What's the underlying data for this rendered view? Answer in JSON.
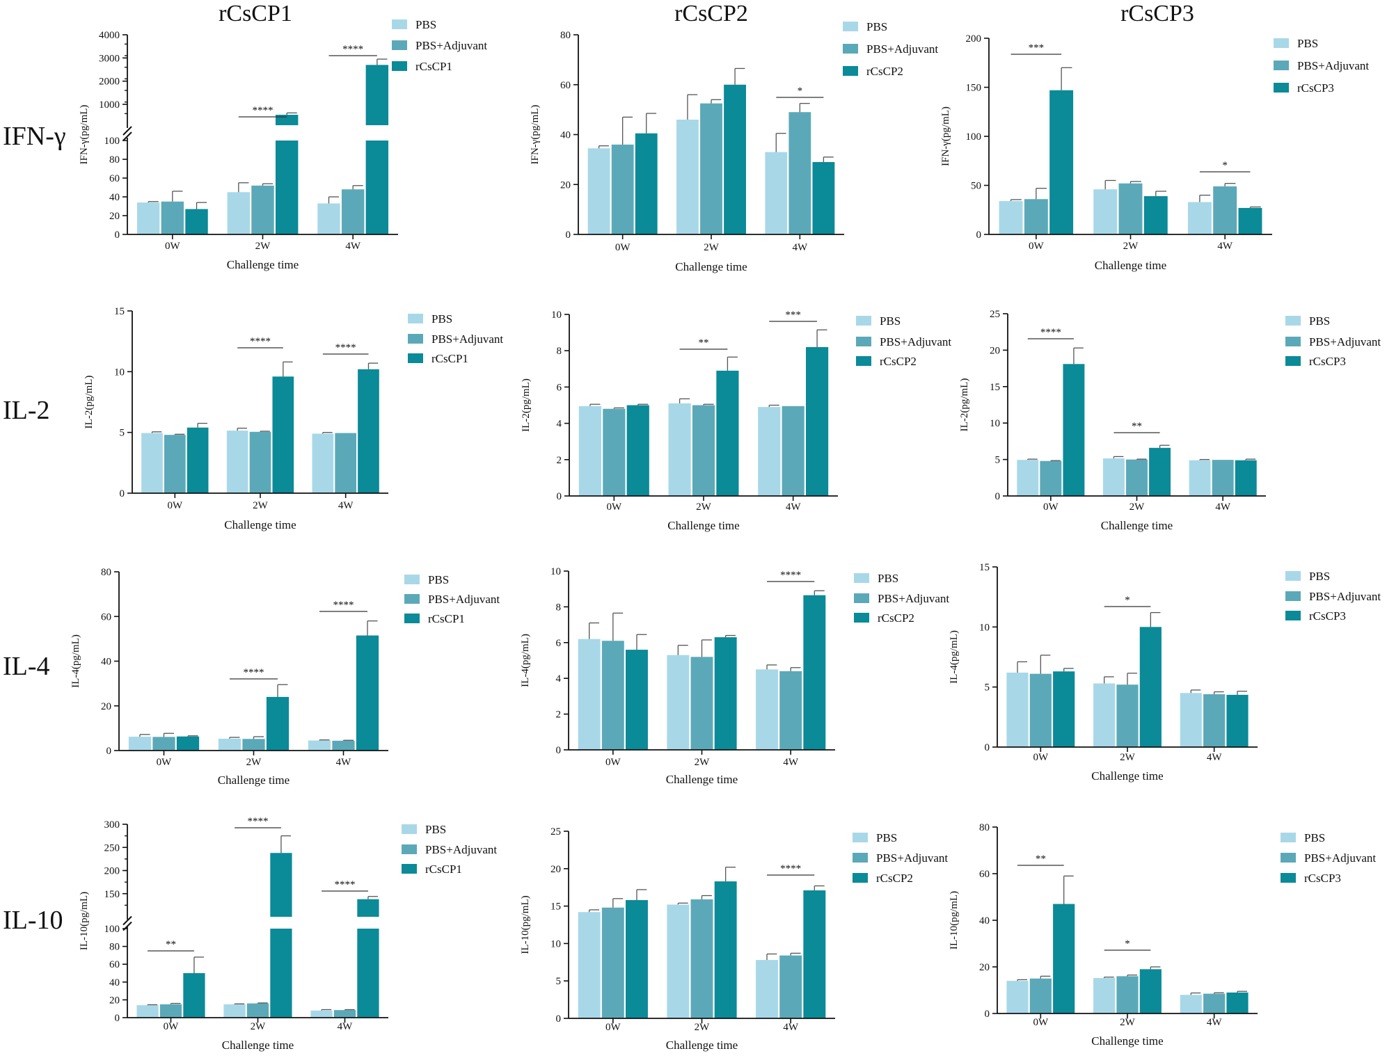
{
  "figure": {
    "column_titles": [
      "rCsCP1",
      "rCsCP2",
      "rCsCP3"
    ],
    "row_labels": [
      "IFN-γ",
      "IL-2",
      "IL-4",
      "IL-10"
    ]
  },
  "colors": {
    "PBS": "#a8d8e8",
    "PBS+Adjuvant": "#5ba9b8",
    "vaccine": "#0b8a98",
    "axis": "#111111"
  },
  "chart_data": [
    {
      "id": "ifng-1",
      "type": "bar",
      "title": "",
      "xlabel": "Challenge time",
      "ylabel": "IFN-γ(pg/mL)",
      "categories": [
        "0W",
        "2W",
        "4W"
      ],
      "series": [
        {
          "name": "PBS",
          "values": [
            34,
            45,
            33
          ],
          "errors": [
            1,
            10,
            7
          ]
        },
        {
          "name": "PBS+Adjuvant",
          "values": [
            35,
            52,
            48
          ],
          "errors": [
            11,
            2,
            4
          ]
        },
        {
          "name": "rCsCP1",
          "values": [
            27,
            550,
            2700
          ],
          "errors": [
            7,
            80,
            250
          ]
        }
      ],
      "broken_axis": {
        "lower": [
          0,
          100
        ],
        "upper": [
          100,
          4000
        ]
      },
      "lower_ticks": [
        "0",
        "20",
        "40",
        "60",
        "80",
        "100"
      ],
      "upper_ticks": [
        "1000",
        "2000",
        "3000",
        "4000"
      ],
      "significance": [
        {
          "group": 1,
          "label": "****"
        },
        {
          "group": 2,
          "label": "****"
        }
      ],
      "legend": [
        "PBS",
        "PBS+Adjuvant",
        "rCsCP1"
      ]
    },
    {
      "id": "ifng-2",
      "type": "bar",
      "title": "",
      "xlabel": "Challenge time",
      "ylabel": "IFN-γ(pg/mL)",
      "categories": [
        "0W",
        "2W",
        "4W"
      ],
      "series": [
        {
          "name": "PBS",
          "values": [
            34.5,
            46,
            33
          ],
          "errors": [
            1,
            10,
            7.5
          ]
        },
        {
          "name": "PBS+Adjuvant",
          "values": [
            36,
            52.5,
            49
          ],
          "errors": [
            11,
            1.5,
            3.5
          ]
        },
        {
          "name": "rCsCP2",
          "values": [
            40.5,
            60,
            29
          ],
          "errors": [
            8,
            6.5,
            2
          ]
        }
      ],
      "ylim": [
        0,
        80
      ],
      "yticks": [
        "0",
        "20",
        "40",
        "60",
        "80"
      ],
      "significance": [
        {
          "group": 2,
          "label": "*"
        }
      ],
      "legend": [
        "PBS",
        "PBS+Adjuvant",
        "rCsCP2"
      ]
    },
    {
      "id": "ifng-3",
      "type": "bar",
      "title": "",
      "xlabel": "Challenge time",
      "ylabel": "IFN-γ(pg/mL)",
      "categories": [
        "0W",
        "2W",
        "4W"
      ],
      "series": [
        {
          "name": "PBS",
          "values": [
            34,
            46,
            33
          ],
          "errors": [
            1.5,
            9,
            7
          ]
        },
        {
          "name": "PBS+Adjuvant",
          "values": [
            36,
            52,
            49
          ],
          "errors": [
            11,
            2,
            3
          ]
        },
        {
          "name": "rCsCP3",
          "values": [
            147,
            39,
            27
          ],
          "errors": [
            23,
            5,
            1
          ]
        }
      ],
      "ylim": [
        0,
        200
      ],
      "yticks": [
        "0",
        "50",
        "100",
        "150",
        "200"
      ],
      "significance": [
        {
          "group": 0,
          "label": "***"
        },
        {
          "group": 2,
          "label": "*"
        }
      ],
      "legend": [
        "PBS",
        "PBS+Adjuvant",
        "rCsCP3"
      ]
    },
    {
      "id": "il2-1",
      "type": "bar",
      "title": "",
      "xlabel": "Challenge time",
      "ylabel": "IL-2(pg/mL)",
      "categories": [
        "0W",
        "2W",
        "4W"
      ],
      "series": [
        {
          "name": "PBS",
          "values": [
            4.95,
            5.15,
            4.9
          ],
          "errors": [
            0.1,
            0.2,
            0.1
          ]
        },
        {
          "name": "PBS+Adjuvant",
          "values": [
            4.8,
            5.05,
            4.95
          ],
          "errors": [
            0.05,
            0.05,
            0
          ]
        },
        {
          "name": "rCsCP1",
          "values": [
            5.4,
            9.6,
            10.2
          ],
          "errors": [
            0.35,
            1.2,
            0.5
          ]
        }
      ],
      "ylim": [
        0,
        15
      ],
      "yticks": [
        "0",
        "5",
        "10",
        "15"
      ],
      "significance": [
        {
          "group": 1,
          "label": "****"
        },
        {
          "group": 2,
          "label": "****"
        }
      ],
      "legend": [
        "PBS",
        "PBS+Adjuvant",
        "rCsCP1"
      ]
    },
    {
      "id": "il2-2",
      "type": "bar",
      "title": "",
      "xlabel": "Challenge time",
      "ylabel": "IL-2(pg/mL)",
      "categories": [
        "0W",
        "2W",
        "4W"
      ],
      "series": [
        {
          "name": "PBS",
          "values": [
            4.95,
            5.1,
            4.9
          ],
          "errors": [
            0.1,
            0.25,
            0.1
          ]
        },
        {
          "name": "PBS+Adjuvant",
          "values": [
            4.8,
            5.0,
            4.95
          ],
          "errors": [
            0.05,
            0.05,
            0
          ]
        },
        {
          "name": "rCsCP2",
          "values": [
            5.0,
            6.9,
            8.2
          ],
          "errors": [
            0.05,
            0.75,
            0.95
          ]
        }
      ],
      "ylim": [
        0,
        10
      ],
      "yticks": [
        "0",
        "2",
        "4",
        "6",
        "8",
        "10"
      ],
      "significance": [
        {
          "group": 1,
          "label": "**"
        },
        {
          "group": 2,
          "label": "***"
        }
      ],
      "legend": [
        "PBS",
        "PBS+Adjuvant",
        "rCsCP2"
      ]
    },
    {
      "id": "il2-3",
      "type": "bar",
      "title": "",
      "xlabel": "Challenge time",
      "ylabel": "IL-2(pg/mL)",
      "categories": [
        "0W",
        "2W",
        "4W"
      ],
      "series": [
        {
          "name": "PBS",
          "values": [
            4.95,
            5.15,
            4.9
          ],
          "errors": [
            0.1,
            0.25,
            0.1
          ]
        },
        {
          "name": "PBS+Adjuvant",
          "values": [
            4.8,
            5.0,
            4.95
          ],
          "errors": [
            0.05,
            0.05,
            0
          ]
        },
        {
          "name": "rCsCP3",
          "values": [
            18.1,
            6.6,
            4.9
          ],
          "errors": [
            2.2,
            0.35,
            0.15
          ]
        }
      ],
      "ylim": [
        0,
        25
      ],
      "yticks": [
        "0",
        "5",
        "10",
        "15",
        "20",
        "25"
      ],
      "significance": [
        {
          "group": 0,
          "label": "****"
        },
        {
          "group": 1,
          "label": "**"
        }
      ],
      "legend": [
        "PBS",
        "PBS+Adjuvant",
        "rCsCP3"
      ]
    },
    {
      "id": "il4-1",
      "type": "bar",
      "title": "",
      "xlabel": "Challenge time",
      "ylabel": "IL-4(pg/mL)",
      "categories": [
        "0W",
        "2W",
        "4W"
      ],
      "series": [
        {
          "name": "PBS",
          "values": [
            6.2,
            5.3,
            4.5
          ],
          "errors": [
            1,
            0.6,
            0.25
          ]
        },
        {
          "name": "PBS+Adjuvant",
          "values": [
            6.1,
            5.2,
            4.4
          ],
          "errors": [
            1.6,
            1,
            0.2
          ]
        },
        {
          "name": "rCsCP1",
          "values": [
            6.3,
            24,
            51.5
          ],
          "errors": [
            0.3,
            5.5,
            6.5
          ]
        }
      ],
      "ylim": [
        0,
        80
      ],
      "yticks": [
        "0",
        "20",
        "40",
        "60",
        "80"
      ],
      "significance": [
        {
          "group": 1,
          "label": "****"
        },
        {
          "group": 2,
          "label": "****"
        }
      ],
      "legend": [
        "PBS",
        "PBS+Adjuvant",
        "rCsCP1"
      ]
    },
    {
      "id": "il4-2",
      "type": "bar",
      "title": "",
      "xlabel": "Challenge time",
      "ylabel": "IL-4(pg/mL)",
      "categories": [
        "0W",
        "2W",
        "4W"
      ],
      "series": [
        {
          "name": "PBS",
          "values": [
            6.2,
            5.3,
            4.5
          ],
          "errors": [
            0.9,
            0.55,
            0.25
          ]
        },
        {
          "name": "PBS+Adjuvant",
          "values": [
            6.1,
            5.2,
            4.4
          ],
          "errors": [
            1.55,
            0.95,
            0.2
          ]
        },
        {
          "name": "rCsCP2",
          "values": [
            5.6,
            6.3,
            8.65
          ],
          "errors": [
            0.85,
            0.1,
            0.25
          ]
        }
      ],
      "ylim": [
        0,
        10
      ],
      "yticks": [
        "0",
        "2",
        "4",
        "6",
        "8",
        "10"
      ],
      "significance": [
        {
          "group": 2,
          "label": "****"
        }
      ],
      "legend": [
        "PBS",
        "PBS+Adjuvant",
        "rCsCP2"
      ]
    },
    {
      "id": "il4-3",
      "type": "bar",
      "title": "",
      "xlabel": "Challenge time",
      "ylabel": "IL-4(pg/mL)",
      "categories": [
        "0W",
        "2W",
        "4W"
      ],
      "series": [
        {
          "name": "PBS",
          "values": [
            6.2,
            5.3,
            4.5
          ],
          "errors": [
            0.9,
            0.55,
            0.25
          ]
        },
        {
          "name": "PBS+Adjuvant",
          "values": [
            6.1,
            5.2,
            4.4
          ],
          "errors": [
            1.55,
            0.95,
            0.2
          ]
        },
        {
          "name": "rCsCP3",
          "values": [
            6.3,
            10.0,
            4.35
          ],
          "errors": [
            0.25,
            1.2,
            0.3
          ]
        }
      ],
      "ylim": [
        0,
        15
      ],
      "yticks": [
        "0",
        "5",
        "10",
        "15"
      ],
      "significance": [
        {
          "group": 1,
          "label": "*"
        }
      ],
      "legend": [
        "PBS",
        "PBS+Adjuvant",
        "rCsCP3"
      ]
    },
    {
      "id": "il10-1",
      "type": "bar",
      "title": "",
      "xlabel": "Challenge time",
      "ylabel": "IL-10(pg/mL)",
      "categories": [
        "0W",
        "2W",
        "4W"
      ],
      "series": [
        {
          "name": "PBS",
          "values": [
            14,
            15,
            8
          ],
          "errors": [
            0.5,
            0.5,
            1
          ]
        },
        {
          "name": "PBS+Adjuvant",
          "values": [
            15,
            16,
            8.5
          ],
          "errors": [
            1,
            0.5,
            0.5
          ]
        },
        {
          "name": "rCsCP1",
          "values": [
            50,
            238,
            138
          ],
          "errors": [
            18,
            37,
            6
          ]
        }
      ],
      "broken_axis": {
        "lower": [
          0,
          100
        ],
        "upper": [
          100,
          300
        ]
      },
      "lower_ticks": [
        "0",
        "20",
        "40",
        "60",
        "80",
        "100"
      ],
      "upper_ticks": [
        "150",
        "200",
        "250",
        "300"
      ],
      "significance": [
        {
          "group": 0,
          "label": "**"
        },
        {
          "group": 1,
          "label": "****"
        },
        {
          "group": 2,
          "label": "****"
        }
      ],
      "legend": [
        "PBS",
        "PBS+Adjuvant",
        "rCsCP1"
      ]
    },
    {
      "id": "il10-2",
      "type": "bar",
      "title": "",
      "xlabel": "Challenge time",
      "ylabel": "IL-10(pg/mL)",
      "categories": [
        "0W",
        "2W",
        "4W"
      ],
      "series": [
        {
          "name": "PBS",
          "values": [
            14.2,
            15.2,
            7.8
          ],
          "errors": [
            0.3,
            0.2,
            0.8
          ]
        },
        {
          "name": "PBS+Adjuvant",
          "values": [
            14.8,
            15.9,
            8.4
          ],
          "errors": [
            1.2,
            0.5,
            0.3
          ]
        },
        {
          "name": "rCsCP2",
          "values": [
            15.8,
            18.3,
            17.1
          ],
          "errors": [
            1.4,
            1.9,
            0.6
          ]
        }
      ],
      "ylim": [
        0,
        25
      ],
      "yticks": [
        "0",
        "5",
        "10",
        "15",
        "20",
        "25"
      ],
      "significance": [
        {
          "group": 2,
          "label": "****"
        }
      ],
      "legend": [
        "PBS",
        "PBS+Adjuvant",
        "rCsCP2"
      ]
    },
    {
      "id": "il10-3",
      "type": "bar",
      "title": "",
      "xlabel": "Challenge time",
      "ylabel": "IL-10(pg/mL)",
      "categories": [
        "0W",
        "2W",
        "4W"
      ],
      "series": [
        {
          "name": "PBS",
          "values": [
            14,
            15.2,
            8
          ],
          "errors": [
            0.5,
            0.4,
            0.8
          ]
        },
        {
          "name": "PBS+Adjuvant",
          "values": [
            15,
            16,
            8.5
          ],
          "errors": [
            1,
            0.5,
            0.4
          ]
        },
        {
          "name": "rCsCP3",
          "values": [
            47,
            19,
            9
          ],
          "errors": [
            12,
            1,
            0.5
          ]
        }
      ],
      "ylim": [
        0,
        80
      ],
      "yticks": [
        "0",
        "20",
        "40",
        "60",
        "80"
      ],
      "significance": [
        {
          "group": 0,
          "label": "**"
        },
        {
          "group": 1,
          "label": "*"
        }
      ],
      "legend": [
        "PBS",
        "PBS+Adjuvant",
        "rCsCP3"
      ]
    }
  ]
}
